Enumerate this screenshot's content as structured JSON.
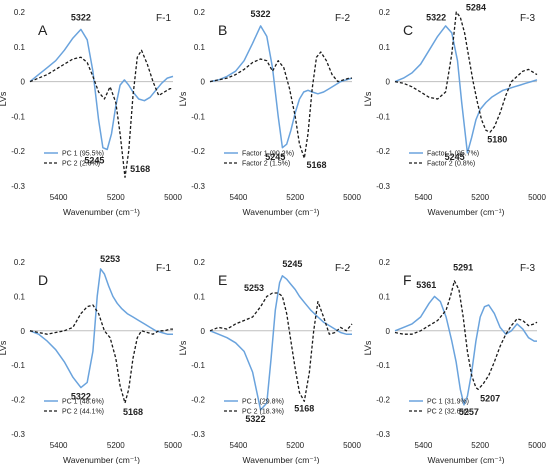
{
  "figure": {
    "x_unit_label": "Wavenumber (cm⁻¹)",
    "y_label": "LVs",
    "colors": {
      "series1": "#6aa3dd",
      "series2": "#1a1a1a",
      "axis": "#bfbfbf",
      "text": "#222222"
    }
  },
  "chart_data": [
    {
      "type": "line",
      "letter": "A",
      "tag": "F-1",
      "xlim": [
        5500,
        5000
      ],
      "ylim": [
        -0.3,
        0.2
      ],
      "xticks": [
        5400,
        5200,
        5000
      ],
      "yticks": [
        -0.3,
        -0.2,
        -0.1,
        0,
        0.1,
        0.2
      ],
      "series": [
        {
          "name": "PC 1 (95.5%)",
          "style": "solid",
          "x": [
            5500,
            5470,
            5440,
            5410,
            5380,
            5350,
            5322,
            5300,
            5280,
            5260,
            5245,
            5230,
            5215,
            5200,
            5185,
            5170,
            5155,
            5140,
            5120,
            5100,
            5080,
            5060,
            5040,
            5020,
            5000
          ],
          "y": [
            0.0,
            0.02,
            0.04,
            0.06,
            0.09,
            0.125,
            0.15,
            0.12,
            0.03,
            -0.11,
            -0.19,
            -0.195,
            -0.15,
            -0.07,
            -0.01,
            0.005,
            -0.01,
            -0.03,
            -0.05,
            -0.055,
            -0.045,
            -0.025,
            -0.005,
            0.01,
            0.015
          ]
        },
        {
          "name": "PC 2 (2.6%)",
          "style": "dashed",
          "x": [
            5500,
            5470,
            5440,
            5410,
            5380,
            5350,
            5322,
            5300,
            5280,
            5260,
            5240,
            5220,
            5200,
            5185,
            5168,
            5155,
            5140,
            5125,
            5110,
            5090,
            5070,
            5050,
            5030,
            5010,
            5000
          ],
          "y": [
            0.0,
            0.01,
            0.02,
            0.035,
            0.05,
            0.065,
            0.07,
            0.055,
            0.015,
            -0.03,
            -0.05,
            -0.015,
            -0.06,
            -0.15,
            -0.275,
            -0.2,
            -0.04,
            0.07,
            0.09,
            0.05,
            0.0,
            -0.04,
            -0.03,
            -0.02,
            -0.02
          ]
        }
      ],
      "labels": [
        {
          "text": "5322",
          "x": 5322,
          "y": 0.175
        },
        {
          "text": "5245",
          "x": 5275,
          "y": -0.235
        },
        {
          "text": "5168",
          "x": 5115,
          "y": -0.26
        }
      ]
    },
    {
      "type": "line",
      "letter": "B",
      "tag": "F-2",
      "xlim": [
        5500,
        5000
      ],
      "ylim": [
        -0.3,
        0.2
      ],
      "xticks": [
        5400,
        5200,
        5000
      ],
      "yticks": [
        -0.3,
        -0.2,
        -0.1,
        0,
        0.1,
        0.2
      ],
      "series": [
        {
          "name": "Factor 1 (90.2%)",
          "style": "solid",
          "x": [
            5500,
            5470,
            5440,
            5410,
            5380,
            5350,
            5322,
            5300,
            5280,
            5260,
            5245,
            5230,
            5215,
            5200,
            5185,
            5170,
            5155,
            5140,
            5120,
            5100,
            5080,
            5060,
            5040,
            5020,
            5000
          ],
          "y": [
            0.0,
            0.005,
            0.015,
            0.03,
            0.06,
            0.11,
            0.16,
            0.13,
            0.04,
            -0.1,
            -0.19,
            -0.18,
            -0.14,
            -0.09,
            -0.05,
            -0.03,
            -0.025,
            -0.03,
            -0.035,
            -0.03,
            -0.02,
            -0.01,
            0.0,
            0.005,
            0.01
          ]
        },
        {
          "name": "Factor 2 (1.5%)",
          "style": "dashed",
          "x": [
            5500,
            5470,
            5440,
            5410,
            5380,
            5350,
            5322,
            5300,
            5280,
            5260,
            5240,
            5220,
            5200,
            5185,
            5168,
            5155,
            5140,
            5125,
            5110,
            5090,
            5070,
            5050,
            5030,
            5010,
            5000
          ],
          "y": [
            0.0,
            0.005,
            0.01,
            0.02,
            0.035,
            0.055,
            0.065,
            0.06,
            0.03,
            0.06,
            0.04,
            -0.02,
            -0.1,
            -0.18,
            -0.22,
            -0.15,
            -0.02,
            0.07,
            0.085,
            0.06,
            0.02,
            0.0,
            0.005,
            0.01,
            0.01
          ]
        }
      ],
      "labels": [
        {
          "text": "5322",
          "x": 5322,
          "y": 0.185
        },
        {
          "text": "5245",
          "x": 5270,
          "y": -0.225
        },
        {
          "text": "5168",
          "x": 5125,
          "y": -0.248
        }
      ]
    },
    {
      "type": "line",
      "letter": "C",
      "tag": "F-3",
      "xlim": [
        5500,
        5000
      ],
      "ylim": [
        -0.3,
        0.2
      ],
      "xticks": [
        5400,
        5200,
        5000
      ],
      "yticks": [
        -0.3,
        -0.2,
        -0.1,
        0,
        0.1,
        0.2
      ],
      "series": [
        {
          "name": "Factor 1 (95.7%)",
          "style": "solid",
          "x": [
            5500,
            5470,
            5440,
            5410,
            5380,
            5350,
            5322,
            5300,
            5280,
            5265,
            5245,
            5230,
            5215,
            5200,
            5180,
            5160,
            5140,
            5120,
            5100,
            5080,
            5060,
            5040,
            5020,
            5000
          ],
          "y": [
            0.0,
            0.01,
            0.025,
            0.05,
            0.09,
            0.13,
            0.16,
            0.14,
            0.06,
            -0.06,
            -0.205,
            -0.16,
            -0.11,
            -0.08,
            -0.06,
            -0.045,
            -0.035,
            -0.025,
            -0.02,
            -0.015,
            -0.01,
            -0.005,
            0.0,
            0.005
          ]
        },
        {
          "name": "Factor 2 (0.8%)",
          "style": "dashed",
          "x": [
            5500,
            5470,
            5440,
            5410,
            5380,
            5350,
            5322,
            5300,
            5284,
            5270,
            5255,
            5240,
            5225,
            5210,
            5195,
            5180,
            5165,
            5150,
            5130,
            5110,
            5090,
            5070,
            5050,
            5030,
            5010,
            5000
          ],
          "y": [
            0.0,
            -0.005,
            -0.015,
            -0.03,
            -0.045,
            -0.05,
            -0.03,
            0.08,
            0.2,
            0.185,
            0.14,
            0.07,
            0.0,
            -0.06,
            -0.11,
            -0.14,
            -0.145,
            -0.13,
            -0.09,
            -0.04,
            0.0,
            0.015,
            0.03,
            0.035,
            0.025,
            0.02
          ]
        }
      ],
      "labels": [
        {
          "text": "5322",
          "x": 5355,
          "y": 0.175
        },
        {
          "text": "5284",
          "x": 5215,
          "y": 0.205
        },
        {
          "text": "5245",
          "x": 5290,
          "y": -0.225
        },
        {
          "text": "5180",
          "x": 5140,
          "y": -0.175
        }
      ]
    },
    {
      "type": "line",
      "letter": "D",
      "tag": "F-1",
      "xlim": [
        5500,
        5000
      ],
      "ylim": [
        -0.3,
        0.2
      ],
      "xticks": [
        5400,
        5200,
        5000
      ],
      "yticks": [
        -0.3,
        -0.2,
        -0.1,
        0,
        0.1,
        0.2
      ],
      "series": [
        {
          "name": "PC 1 (48.6%)",
          "style": "solid",
          "x": [
            5500,
            5470,
            5440,
            5410,
            5380,
            5350,
            5322,
            5300,
            5280,
            5265,
            5253,
            5240,
            5225,
            5210,
            5195,
            5180,
            5160,
            5140,
            5120,
            5100,
            5080,
            5060,
            5040,
            5020,
            5000
          ],
          "y": [
            0.0,
            -0.01,
            -0.03,
            -0.055,
            -0.09,
            -0.135,
            -0.165,
            -0.15,
            -0.06,
            0.1,
            0.18,
            0.165,
            0.13,
            0.1,
            0.08,
            0.065,
            0.05,
            0.04,
            0.03,
            0.02,
            0.01,
            0.0,
            -0.005,
            -0.01,
            -0.01
          ]
        },
        {
          "name": "PC 2 (44.1%)",
          "style": "dashed",
          "x": [
            5500,
            5470,
            5440,
            5410,
            5380,
            5350,
            5322,
            5300,
            5280,
            5260,
            5240,
            5220,
            5200,
            5185,
            5168,
            5155,
            5140,
            5125,
            5110,
            5090,
            5070,
            5050,
            5030,
            5010,
            5000
          ],
          "y": [
            0.0,
            -0.005,
            -0.01,
            -0.005,
            0.0,
            0.01,
            0.05,
            0.07,
            0.075,
            0.05,
            0.0,
            -0.02,
            -0.08,
            -0.16,
            -0.21,
            -0.17,
            -0.08,
            -0.02,
            0.0,
            -0.005,
            -0.01,
            0.0,
            0.0,
            0.005,
            0.005
          ]
        }
      ],
      "labels": [
        {
          "text": "5253",
          "x": 5220,
          "y": 0.2
        },
        {
          "text": "5322",
          "x": 5322,
          "y": -0.2
        },
        {
          "text": "5168",
          "x": 5140,
          "y": -0.245
        }
      ]
    },
    {
      "type": "line",
      "letter": "E",
      "tag": "F-2",
      "xlim": [
        5500,
        5000
      ],
      "ylim": [
        -0.3,
        0.2
      ],
      "xticks": [
        5400,
        5200,
        5000
      ],
      "yticks": [
        -0.3,
        -0.2,
        -0.1,
        0,
        0.1,
        0.2
      ],
      "series": [
        {
          "name": "PC 1 (29.8%)",
          "style": "solid",
          "x": [
            5500,
            5470,
            5440,
            5410,
            5380,
            5350,
            5322,
            5300,
            5285,
            5270,
            5255,
            5245,
            5230,
            5215,
            5200,
            5185,
            5165,
            5145,
            5120,
            5100,
            5080,
            5060,
            5040,
            5020,
            5000
          ],
          "y": [
            0.0,
            -0.01,
            -0.02,
            -0.035,
            -0.06,
            -0.12,
            -0.23,
            -0.21,
            -0.08,
            0.06,
            0.14,
            0.16,
            0.15,
            0.135,
            0.12,
            0.1,
            0.08,
            0.06,
            0.04,
            0.025,
            0.015,
            0.005,
            -0.005,
            -0.01,
            -0.01
          ]
        },
        {
          "name": "PC 2 (18.3%)",
          "style": "dashed",
          "x": [
            5500,
            5470,
            5440,
            5410,
            5380,
            5350,
            5322,
            5300,
            5280,
            5260,
            5245,
            5230,
            5215,
            5200,
            5185,
            5168,
            5150,
            5135,
            5120,
            5100,
            5080,
            5060,
            5040,
            5020,
            5000
          ],
          "y": [
            0.0,
            0.01,
            0.005,
            0.02,
            0.03,
            0.04,
            0.07,
            0.1,
            0.11,
            0.11,
            0.1,
            0.05,
            -0.03,
            -0.11,
            -0.18,
            -0.205,
            -0.12,
            0.0,
            0.085,
            0.04,
            -0.01,
            -0.005,
            0.01,
            0.0,
            0.02
          ]
        }
      ],
      "labels": [
        {
          "text": "5245",
          "x": 5210,
          "y": 0.185
        },
        {
          "text": "5253",
          "x": 5345,
          "y": 0.115
        },
        {
          "text": "5322",
          "x": 5340,
          "y": -0.265
        },
        {
          "text": "5168",
          "x": 5168,
          "y": -0.235
        }
      ]
    },
    {
      "type": "line",
      "letter": "F",
      "tag": "F-3",
      "xlim": [
        5500,
        5000
      ],
      "ylim": [
        -0.3,
        0.2
      ],
      "xticks": [
        5400,
        5200,
        5000
      ],
      "yticks": [
        -0.3,
        -0.2,
        -0.1,
        0,
        0.1,
        0.2
      ],
      "series": [
        {
          "name": "PC 1 (31.9%)",
          "style": "solid",
          "x": [
            5500,
            5470,
            5440,
            5410,
            5380,
            5361,
            5340,
            5320,
            5300,
            5285,
            5270,
            5257,
            5245,
            5230,
            5215,
            5200,
            5185,
            5170,
            5150,
            5130,
            5110,
            5090,
            5070,
            5050,
            5030,
            5010,
            5000
          ],
          "y": [
            0.0,
            0.01,
            0.02,
            0.04,
            0.08,
            0.1,
            0.085,
            0.04,
            -0.03,
            -0.09,
            -0.17,
            -0.215,
            -0.19,
            -0.12,
            -0.03,
            0.04,
            0.07,
            0.075,
            0.05,
            0.01,
            -0.01,
            0.0,
            0.02,
            0.005,
            -0.02,
            -0.03,
            -0.03
          ]
        },
        {
          "name": "PC 2 (32.6%)",
          "style": "dashed",
          "x": [
            5500,
            5470,
            5440,
            5410,
            5380,
            5350,
            5320,
            5305,
            5291,
            5275,
            5260,
            5245,
            5230,
            5215,
            5207,
            5190,
            5170,
            5150,
            5130,
            5110,
            5090,
            5070,
            5050,
            5030,
            5010,
            5000
          ],
          "y": [
            -0.005,
            -0.01,
            -0.01,
            0.0,
            0.015,
            0.03,
            0.06,
            0.1,
            0.145,
            0.12,
            0.04,
            -0.06,
            -0.13,
            -0.165,
            -0.17,
            -0.155,
            -0.13,
            -0.09,
            -0.045,
            -0.01,
            0.015,
            0.035,
            0.03,
            0.015,
            0.02,
            0.025
          ]
        }
      ],
      "labels": [
        {
          "text": "5291",
          "x": 5260,
          "y": 0.175
        },
        {
          "text": "5361",
          "x": 5390,
          "y": 0.125
        },
        {
          "text": "5257",
          "x": 5240,
          "y": -0.245
        },
        {
          "text": "5207",
          "x": 5165,
          "y": -0.205
        }
      ]
    }
  ]
}
